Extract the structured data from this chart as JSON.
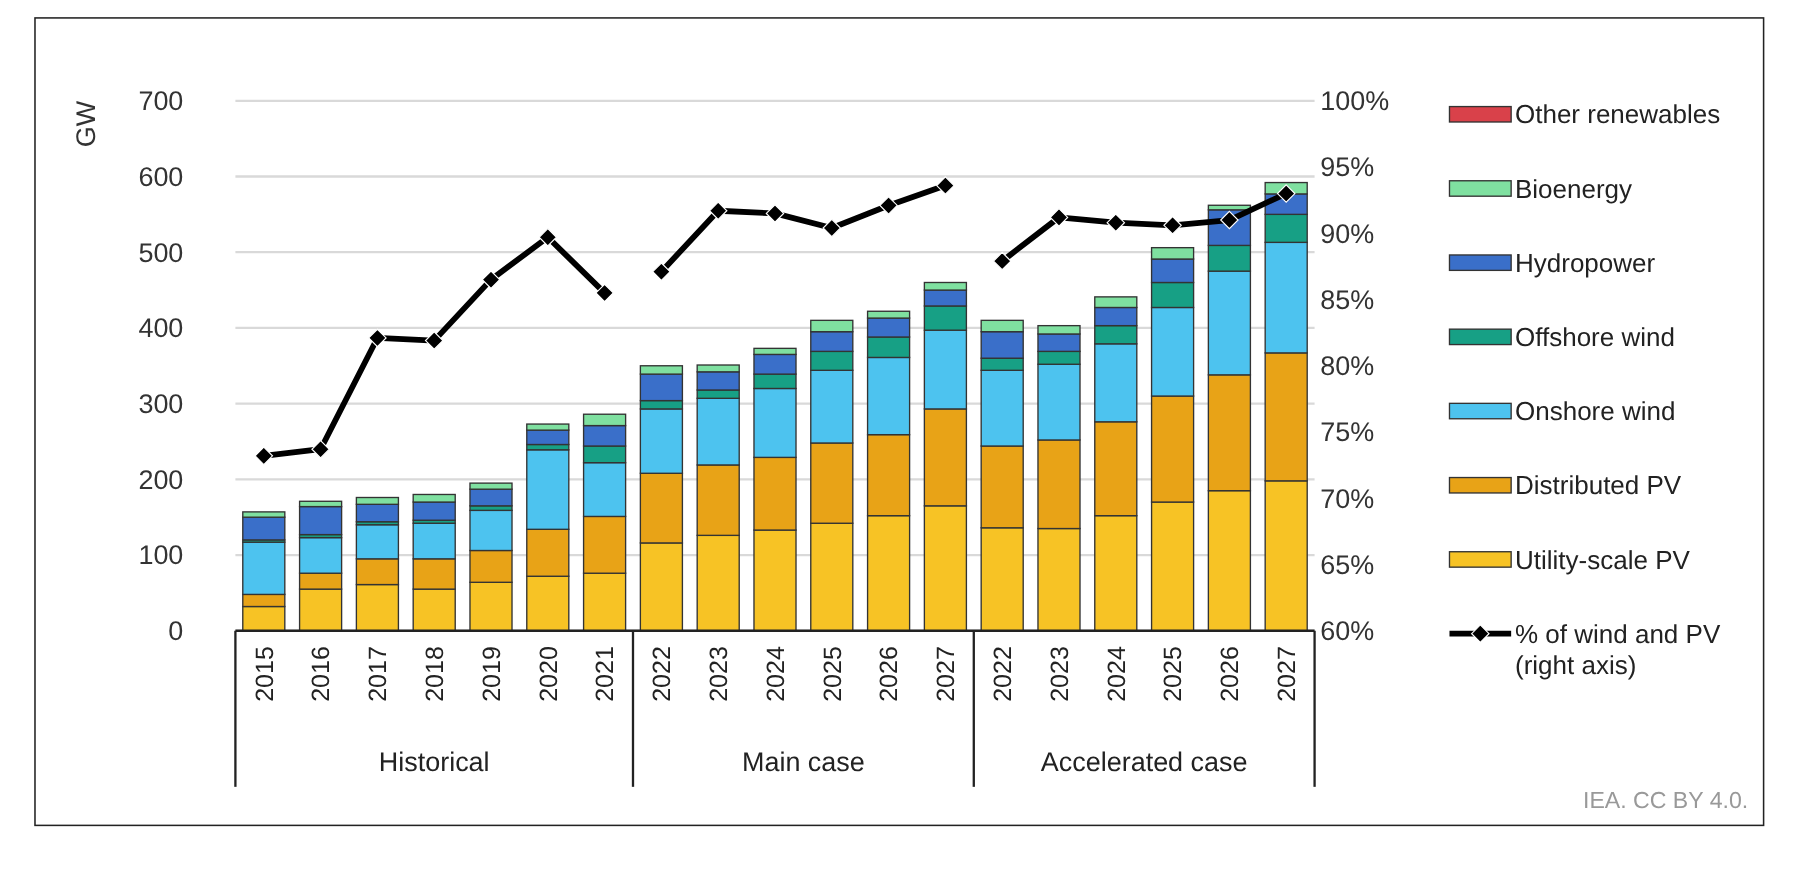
{
  "chart_data": {
    "type": "bar",
    "stacked": true,
    "ylabel": "GW",
    "categories": [
      "2015",
      "2016",
      "2017",
      "2018",
      "2019",
      "2020",
      "2021",
      "2022",
      "2023",
      "2024",
      "2025",
      "2026",
      "2027",
      "2022",
      "2023",
      "2024",
      "2025",
      "2026",
      "2027"
    ],
    "series": [
      {
        "name": "Utility-scale PV",
        "color": "#f7c325",
        "values": [
          32,
          55,
          61,
          55,
          64,
          72,
          76,
          116,
          126,
          133,
          142,
          152,
          165,
          136,
          135,
          152,
          170,
          185,
          198
        ]
      },
      {
        "name": "Distributed PV",
        "color": "#e8a317",
        "values": [
          16,
          21,
          34,
          40,
          42,
          62,
          75,
          92,
          93,
          96,
          106,
          107,
          128,
          108,
          117,
          124,
          140,
          153,
          169
        ]
      },
      {
        "name": "Onshore wind",
        "color": "#4dc3ef",
        "values": [
          69,
          47,
          45,
          47,
          53,
          105,
          71,
          85,
          88,
          91,
          96,
          102,
          104,
          100,
          100,
          103,
          117,
          137,
          146
        ]
      },
      {
        "name": "Offshore wind",
        "color": "#17a085",
        "values": [
          3,
          4,
          4,
          4,
          6,
          7,
          22,
          11,
          11,
          19,
          25,
          27,
          32,
          16,
          17,
          24,
          33,
          34,
          37
        ]
      },
      {
        "name": "Hydropower",
        "color": "#3a6fc9",
        "values": [
          30,
          37,
          23,
          24,
          22,
          19,
          27,
          35,
          24,
          26,
          26,
          25,
          21,
          35,
          23,
          24,
          31,
          47,
          27
        ]
      },
      {
        "name": "Bioenergy",
        "color": "#7fe0a0",
        "values": [
          7,
          7,
          9,
          10,
          8,
          8,
          15,
          11,
          9,
          8,
          15,
          9,
          10,
          15,
          11,
          14,
          15,
          6,
          15
        ]
      },
      {
        "name": "Other renewables",
        "color": "#d9414a",
        "values": [
          null,
          null,
          null,
          null,
          null,
          null,
          null,
          null,
          null,
          null,
          null,
          null,
          null,
          null,
          null,
          null,
          null,
          null,
          null
        ]
      },
      {
        "name": "% of wind and PV\n(right axis)",
        "type": "line",
        "axis": "y2",
        "color": "#000000",
        "marker": "diamond",
        "values": [
          73.2,
          73.7,
          82.1,
          81.9,
          86.5,
          89.7,
          85.5,
          87.1,
          91.7,
          91.5,
          90.4,
          92.1,
          93.6,
          87.9,
          91.2,
          90.8,
          90.6,
          91.0,
          93.0
        ]
      }
    ],
    "ylim": [
      0,
      700
    ],
    "yticks": [
      0,
      100,
      200,
      300,
      400,
      500,
      600,
      700
    ],
    "y2lim": [
      60,
      100
    ],
    "y2ticks": [
      {
        "value": 60,
        "label": "60%"
      },
      {
        "value": 65,
        "label": "65%"
      },
      {
        "value": 70,
        "label": "70%"
      },
      {
        "value": 75,
        "label": "75%"
      },
      {
        "value": 80,
        "label": "80%"
      },
      {
        "value": 85,
        "label": "85%"
      },
      {
        "value": 90,
        "label": "90%"
      },
      {
        "value": 95,
        "label": "95%"
      },
      {
        "value": 100,
        "label": "100%"
      }
    ],
    "grid": "y",
    "legend": "right",
    "annotations": [
      "Historical",
      "Main case",
      "Accelerated case",
      "IEA. CC BY 4.0."
    ]
  }
}
